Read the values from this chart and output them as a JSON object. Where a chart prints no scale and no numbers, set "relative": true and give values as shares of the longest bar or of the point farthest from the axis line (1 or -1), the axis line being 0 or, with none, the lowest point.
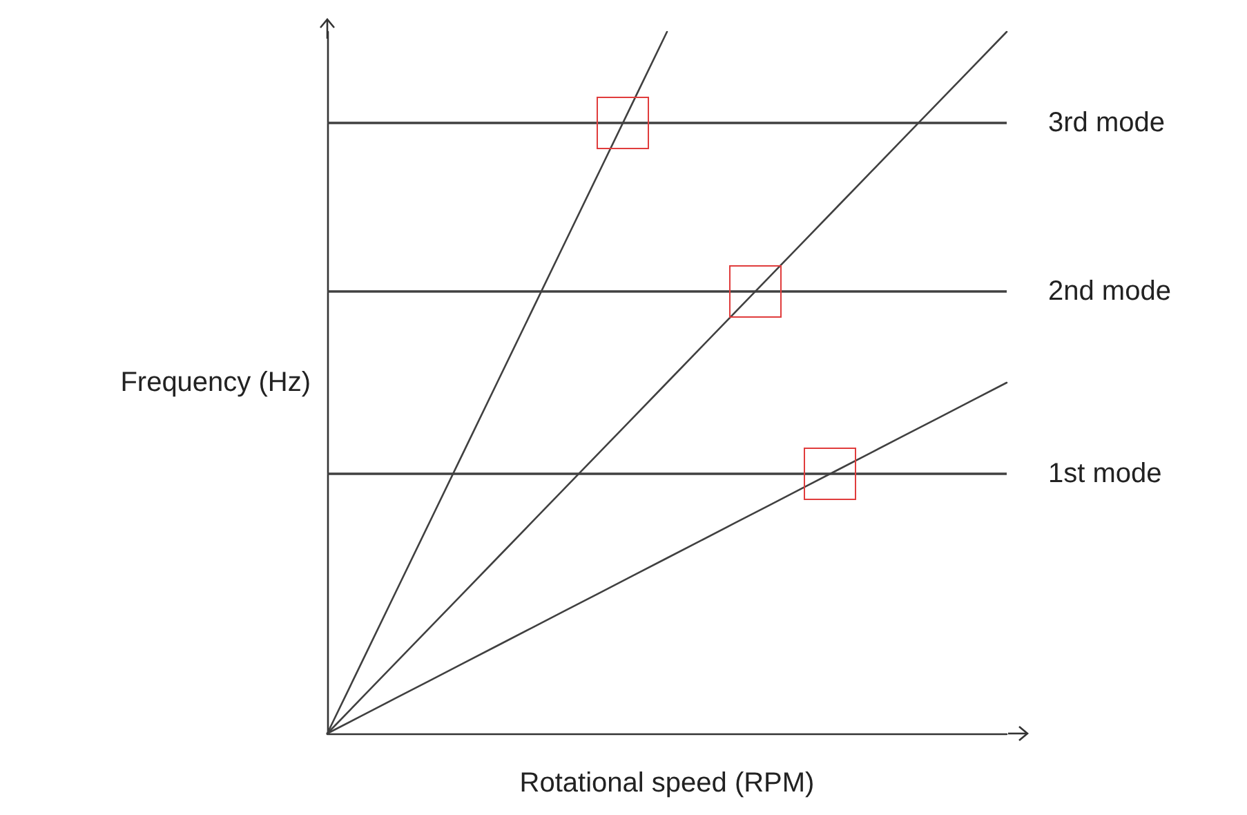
{
  "chart_data": {
    "type": "line",
    "relative": true,
    "xlabel": "Rotational speed (RPM)",
    "ylabel": "Frequency (Hz)",
    "grid": false,
    "marker": "none",
    "line_style": "solid",
    "categories": [
      null,
      null,
      null,
      null,
      null,
      null,
      null,
      null,
      null,
      null,
      null,
      null,
      null,
      null,
      null,
      null,
      null,
      null,
      null,
      null,
      null
    ],
    "series": [
      {
        "color": "#404040",
        "values": [
          0,
          0.1,
          0.2,
          0.3,
          0.4,
          0.5,
          0.6,
          0.7,
          0.8,
          0.9,
          1,
          null,
          null,
          null,
          null,
          null,
          null,
          null,
          null,
          null,
          null
        ]
      },
      {
        "color": "#404040",
        "values": [
          0,
          0.05,
          0.1,
          0.15,
          0.2,
          0.25,
          0.3,
          0.35,
          0.4,
          0.45,
          0.5,
          0.55,
          0.6,
          0.65,
          0.7,
          0.75,
          0.8,
          0.85,
          0.9,
          0.95,
          1
        ]
      },
      {
        "color": "#404040",
        "values": [
          0,
          0.025,
          0.05,
          0.075,
          0.1,
          0.125,
          0.15,
          0.175,
          0.2,
          0.225,
          0.25,
          0.275,
          0.3,
          0.325,
          0.35,
          0.375,
          0.4,
          0.425,
          0.45,
          0.475,
          0.5
        ]
      }
    ],
    "ref_lines": [
      {
        "axis": "y",
        "value": 0.87,
        "label": "3rd mode",
        "color": "#404040"
      },
      {
        "axis": "y",
        "value": 0.63,
        "label": "2nd mode",
        "color": "#404040"
      },
      {
        "axis": "y",
        "value": 0.37,
        "label": "1st mode",
        "color": "#404040"
      }
    ]
  }
}
